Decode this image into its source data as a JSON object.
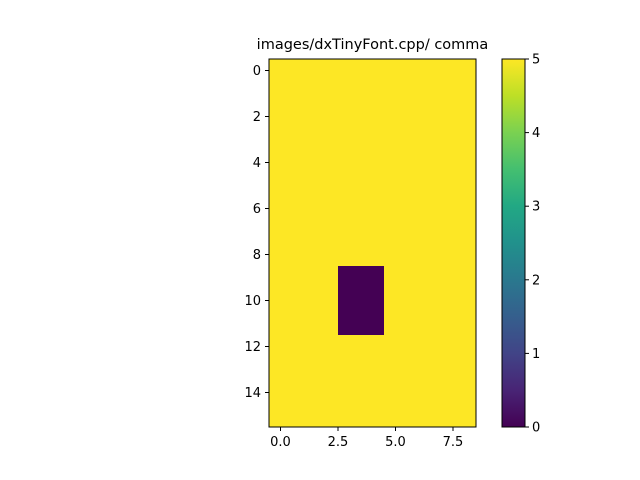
{
  "chart_data": {
    "type": "heatmap",
    "title": "images/dxTinyFont.cpp/ comma",
    "xlabel": "",
    "ylabel": "",
    "rows": 16,
    "cols": 9,
    "grid": false,
    "colormap": "viridis",
    "vmin": 0,
    "vmax": 5,
    "background_value": 5,
    "values": [
      [
        5,
        5,
        5,
        5,
        5,
        5,
        5,
        5,
        5
      ],
      [
        5,
        5,
        5,
        5,
        5,
        5,
        5,
        5,
        5
      ],
      [
        5,
        5,
        5,
        5,
        5,
        5,
        5,
        5,
        5
      ],
      [
        5,
        5,
        5,
        5,
        5,
        5,
        5,
        5,
        5
      ],
      [
        5,
        5,
        5,
        5,
        5,
        5,
        5,
        5,
        5
      ],
      [
        5,
        5,
        5,
        5,
        5,
        5,
        5,
        5,
        5
      ],
      [
        5,
        5,
        5,
        5,
        5,
        5,
        5,
        5,
        5
      ],
      [
        5,
        5,
        5,
        5,
        5,
        5,
        5,
        5,
        5
      ],
      [
        5,
        5,
        5,
        5,
        5,
        5,
        5,
        5,
        5
      ],
      [
        5,
        5,
        5,
        0,
        0,
        5,
        5,
        5,
        5
      ],
      [
        5,
        5,
        5,
        0,
        0,
        5,
        5,
        5,
        5
      ],
      [
        5,
        5,
        5,
        0,
        0,
        5,
        5,
        5,
        5
      ],
      [
        5,
        5,
        5,
        5,
        5,
        5,
        5,
        5,
        5
      ],
      [
        5,
        5,
        5,
        5,
        5,
        5,
        5,
        5,
        5
      ],
      [
        5,
        5,
        5,
        5,
        5,
        5,
        5,
        5,
        5
      ],
      [
        5,
        5,
        5,
        5,
        5,
        5,
        5,
        5,
        5
      ]
    ],
    "xticks": [
      0,
      2.5,
      5,
      7.5
    ],
    "xtick_labels": [
      "0.0",
      "2.5",
      "5.0",
      "7.5"
    ],
    "yticks": [
      0,
      2,
      4,
      6,
      8,
      10,
      12,
      14
    ],
    "ytick_labels": [
      "0",
      "2",
      "4",
      "6",
      "8",
      "10",
      "12",
      "14"
    ],
    "colorbar_ticks": [
      0,
      1,
      2,
      3,
      4,
      5
    ],
    "colorbar_tick_labels": [
      "0",
      "1",
      "2",
      "3",
      "4",
      "5"
    ]
  }
}
